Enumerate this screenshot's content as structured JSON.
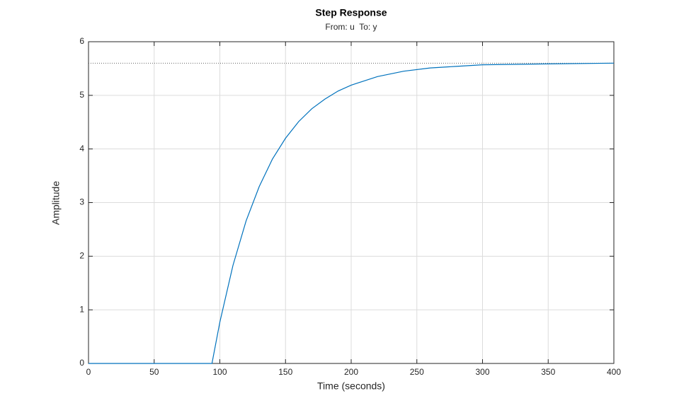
{
  "chart_data": {
    "type": "line",
    "title": "Step Response",
    "subtitle": "From: u  To: y",
    "x_label": "Time (seconds)",
    "y_label": "Amplitude",
    "x": [
      0,
      94,
      100,
      110,
      120,
      130,
      140,
      150,
      160,
      170,
      180,
      190,
      200,
      220,
      240,
      260,
      280,
      300,
      330,
      360,
      400
    ],
    "series": [
      {
        "color": "#0072bd",
        "values": [
          0,
          0,
          0.77,
          1.83,
          2.66,
          3.3,
          3.81,
          4.2,
          4.51,
          4.75,
          4.93,
          5.08,
          5.19,
          5.35,
          5.45,
          5.51,
          5.54,
          5.57,
          5.58,
          5.59,
          5.6
        ]
      }
    ],
    "steady_state": 5.6,
    "xlim": [
      0,
      400
    ],
    "ylim": [
      0,
      6
    ],
    "xticks": [
      0,
      50,
      100,
      150,
      200,
      250,
      300,
      350,
      400
    ],
    "yticks": [
      0,
      1,
      2,
      3,
      4,
      5,
      6
    ],
    "grid": true
  }
}
